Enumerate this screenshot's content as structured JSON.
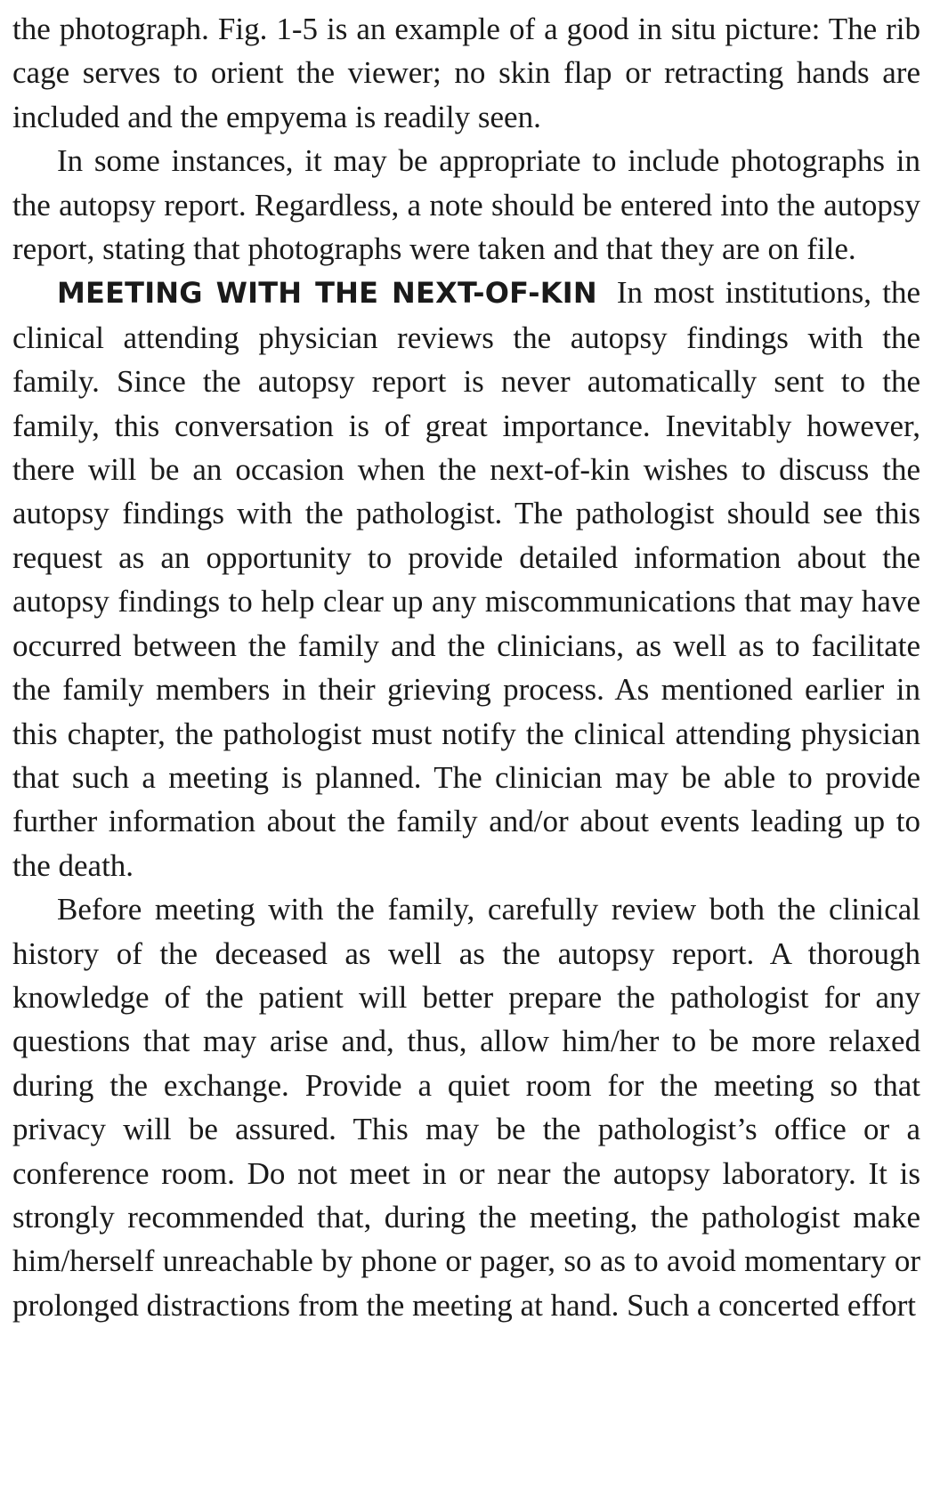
{
  "document": {
    "paragraph_1": "the photograph. Fig. 1-5 is an example of a good in situ picture: The rib cage serves to orient the viewer; no skin flap or retracting hands are included and the empyema is readily seen.",
    "paragraph_2": "In some instances, it may be appropriate to include photographs in the autopsy report. Regardless, a note should be entered into the autopsy report, stating that photographs were taken and that they are on file.",
    "section_heading": "MEETING WITH THE NEXT-OF-KIN",
    "paragraph_3": "In most institutions, the clinical attending physician reviews the autopsy findings with the family. Since the autopsy report is never automatically sent to the family, this conversation is of great importance. Inevitably however, there will be an occasion when the next-of-kin wishes to discuss the autopsy findings with the pathologist. The pathologist should see this request as an opportunity to provide detailed information about the autopsy findings to help clear up any miscommunications that may have occurred between the family and the clinicians, as well as to facilitate the family members in their grieving process. As mentioned earlier in this chapter, the pathologist must notify the clinical attending physician that such a meeting is planned. The clinician may be able to provide further information about the family and/or about events leading up to the death.",
    "paragraph_4": "Before meeting with the family, carefully review both the clinical history of the deceased as well as the autopsy report. A thorough knowledge of the patient will better prepare the pathologist for any questions that may arise and, thus, allow him/her to be more relaxed during the exchange. Provide a quiet room for the meeting so that privacy will be assured. This may be the pathologist’s office or a conference room. Do not meet in or near the autopsy laboratory. It is strongly recommended that, during the meeting, the pathologist make him/herself unreachable by phone or pager, so as to avoid momentary or prolonged distractions from the meeting at hand. Such a concerted effort"
  }
}
